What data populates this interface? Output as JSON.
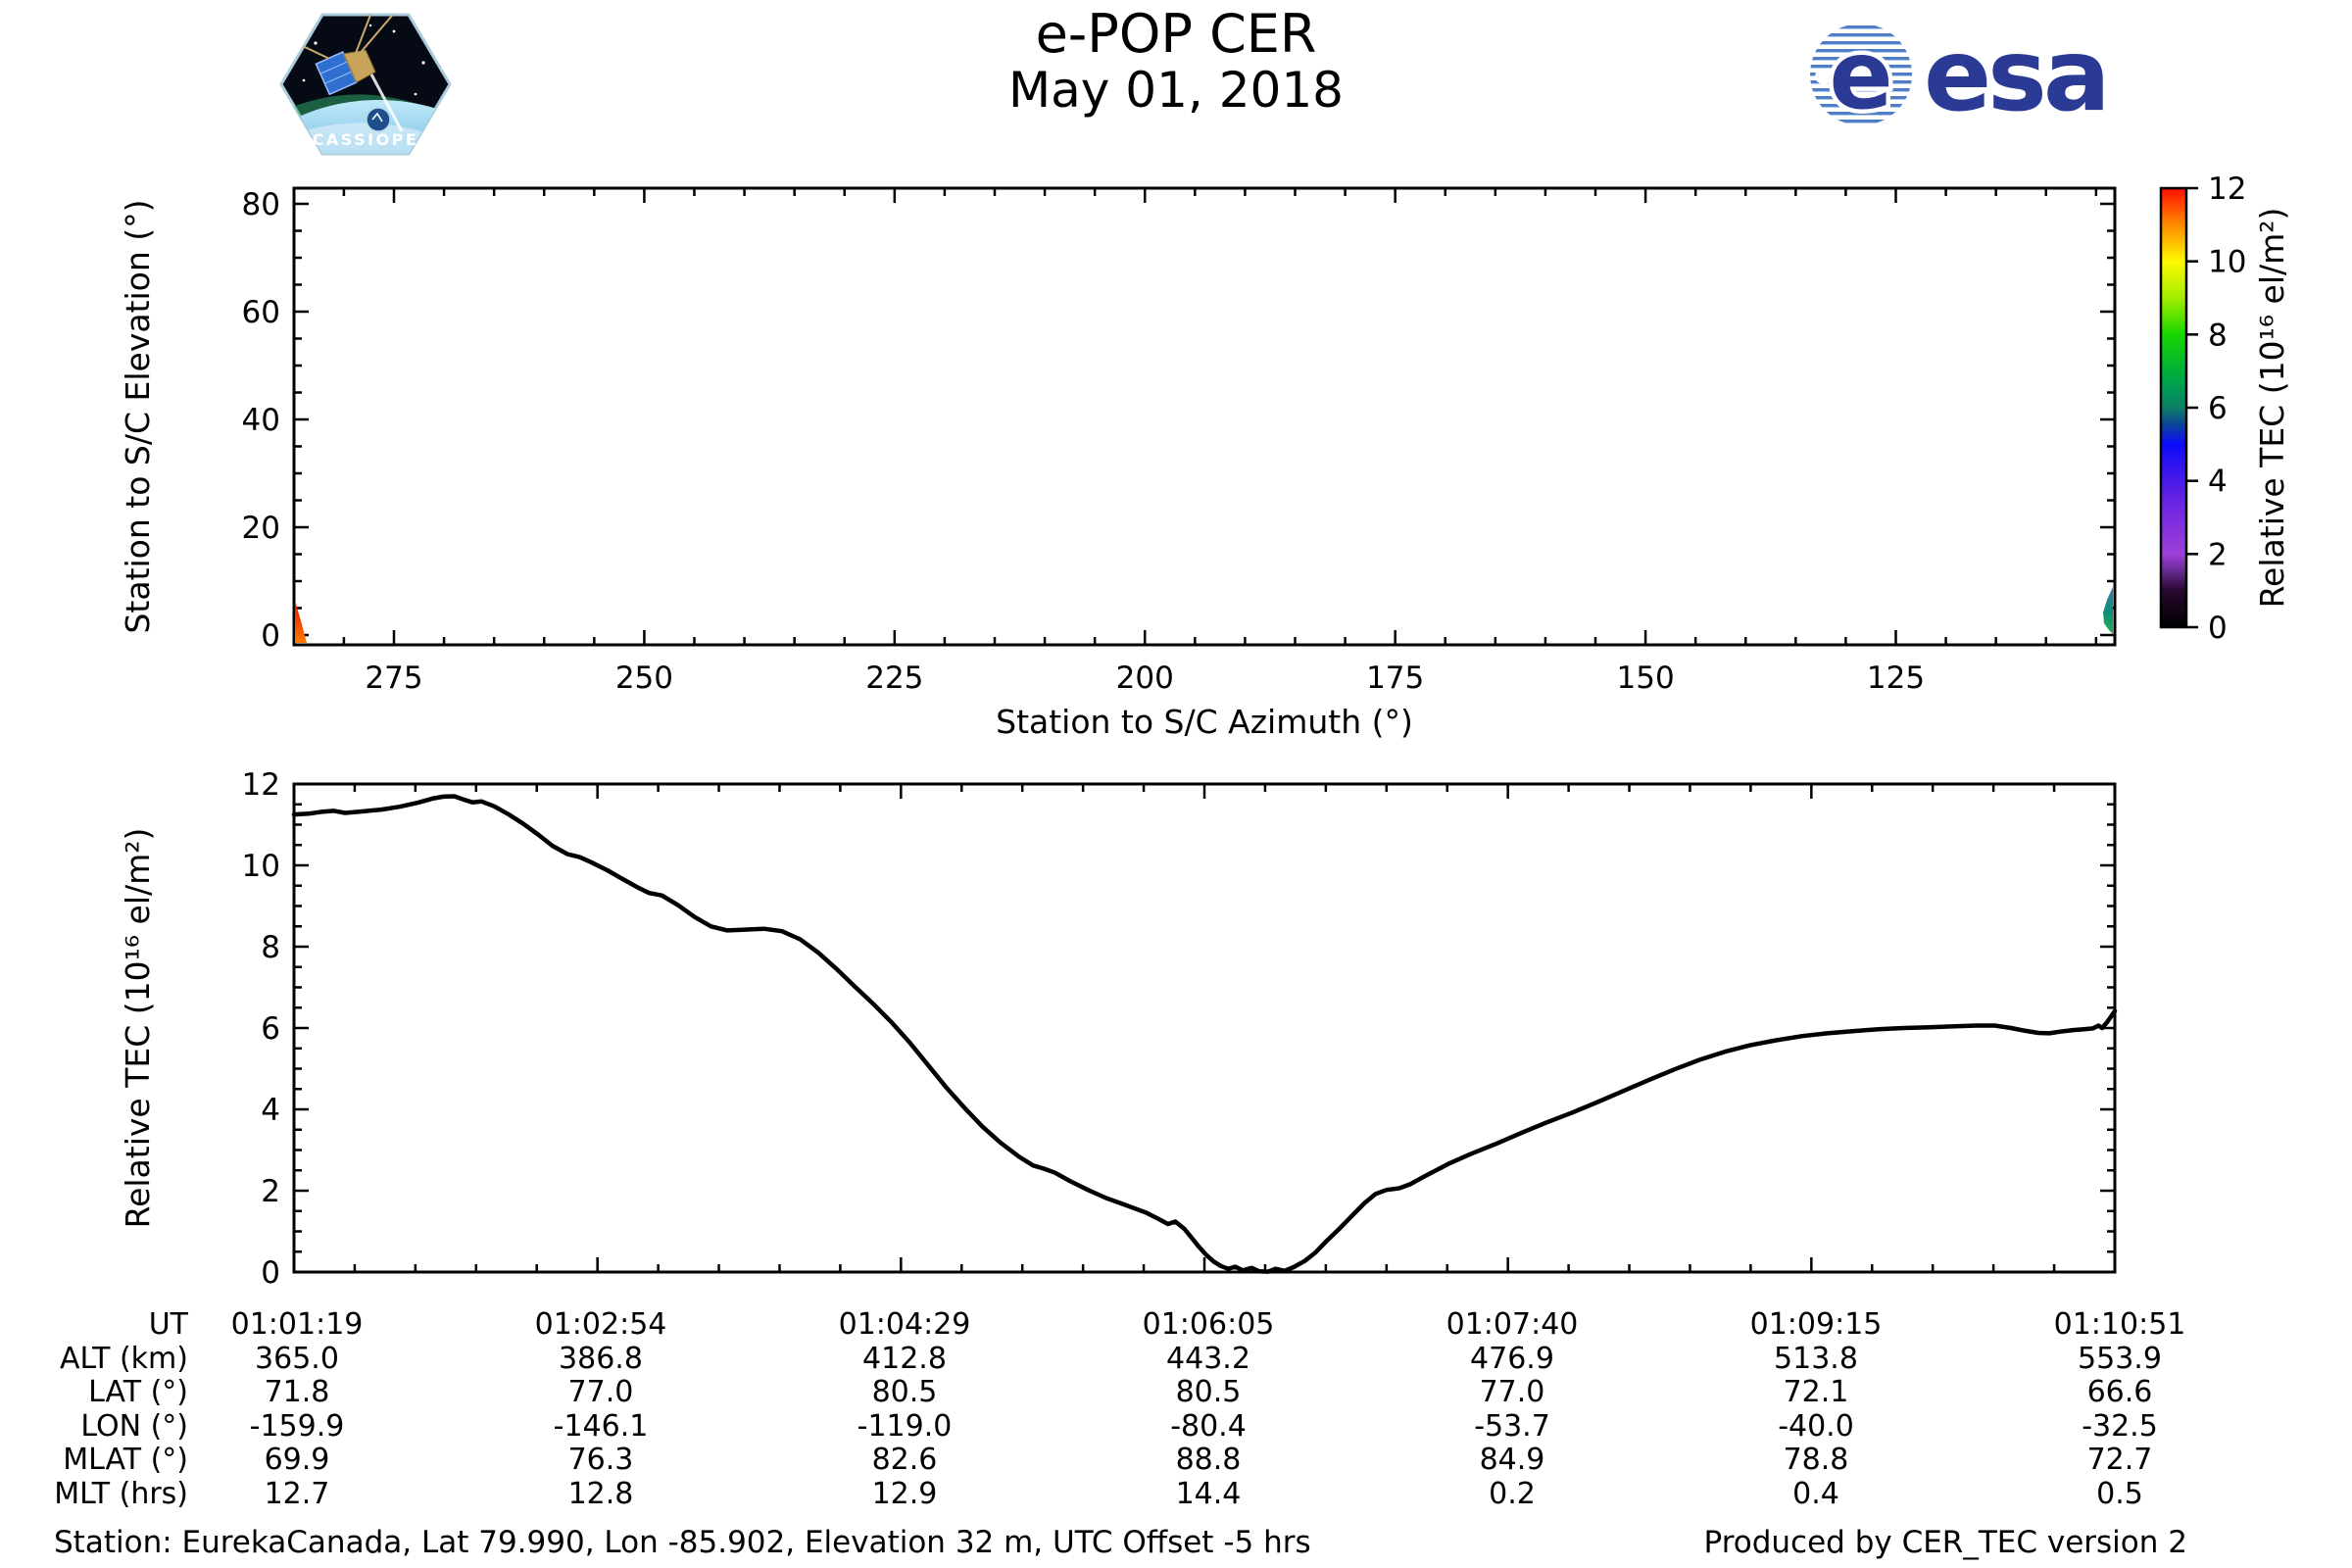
{
  "header": {
    "title_line1": "e-POP CER",
    "title_line2": "May 01, 2018",
    "cassiope_logo_text": "CASSIOPE",
    "esa_logo_text": "esa"
  },
  "footer": {
    "left": "Station: EurekaCanada, Lat 79.990, Lon -85.902, Elevation 32 m, UTC Offset -5 hrs",
    "right": "Produced by CER_TEC version 2"
  },
  "colors": {
    "esa_blue": "#2b3a94",
    "curve": "#000000",
    "axis": "#000000",
    "background": "#ffffff"
  },
  "chart_data": [
    {
      "id": "elevation-azimuth-plot",
      "type": "scatter",
      "title": "",
      "xlabel": "Station to S/C Azimuth (°)",
      "ylabel": "Station to S/C Elevation (°)",
      "xlim": [
        285,
        103
      ],
      "x_reversed": true,
      "ylim": [
        -2,
        83
      ],
      "xticks": [
        275,
        250,
        225,
        200,
        175,
        150,
        125
      ],
      "yticks": [
        0,
        20,
        40,
        60,
        80
      ],
      "minor_tick_step_x": 5,
      "minor_tick_step_y": 5,
      "grid": false,
      "series": [
        {
          "name": "pass-start-mark",
          "azimuth": 284.6,
          "elevation_min": 0,
          "elevation_max": 6.3,
          "tec_approx": 11.5,
          "color_top": "#e01000",
          "color_bottom": "#ff7d00"
        },
        {
          "name": "pass-end-mark",
          "azimuth": 103.4,
          "elevation_min": 1.8,
          "elevation_max": 8.8,
          "tec_approx": 6.2,
          "color_top": "#2e7fa6",
          "color_bottom": "#1cb152"
        }
      ]
    },
    {
      "id": "tec-colorbar",
      "type": "colorbar",
      "label": "Relative TEC (10¹⁶ el/m²)",
      "range": [
        0,
        12
      ],
      "ticks": [
        0,
        2,
        4,
        6,
        8,
        10,
        12
      ],
      "stops_top_to_bottom": [
        [
          12,
          "#ff0e00"
        ],
        [
          11,
          "#ff8a00"
        ],
        [
          10,
          "#fef800"
        ],
        [
          9,
          "#a2ee00"
        ],
        [
          8,
          "#18d600"
        ],
        [
          7,
          "#00b037"
        ],
        [
          6.5,
          "#009a55"
        ],
        [
          6,
          "#0d8066"
        ],
        [
          5.5,
          "#0b3f9f"
        ],
        [
          5,
          "#0c0cfa"
        ],
        [
          4,
          "#4a1ae8"
        ],
        [
          3,
          "#7c2ce0"
        ],
        [
          2,
          "#9c40d8"
        ],
        [
          1.5,
          "#64288c"
        ],
        [
          1,
          "#26082e"
        ],
        [
          0,
          "#000000"
        ]
      ]
    },
    {
      "id": "tec-time-series",
      "type": "line",
      "xlabel": "UT",
      "ylabel": "Relative TEC (10¹⁶ el/m²)",
      "ylim": [
        0,
        12
      ],
      "yticks": [
        0,
        2,
        4,
        6,
        8,
        10,
        12
      ],
      "minor_tick_step_y": 0.5,
      "x_tick_labels": [
        "01:01:19",
        "01:02:54",
        "01:04:29",
        "01:06:05",
        "01:07:40",
        "01:09:15",
        "01:10:51"
      ],
      "line_color": "#000000",
      "points": [
        [
          0.0,
          11.25
        ],
        [
          0.008,
          11.27
        ],
        [
          0.016,
          11.32
        ],
        [
          0.022,
          11.34
        ],
        [
          0.028,
          11.29
        ],
        [
          0.036,
          11.32
        ],
        [
          0.048,
          11.37
        ],
        [
          0.058,
          11.44
        ],
        [
          0.068,
          11.54
        ],
        [
          0.076,
          11.64
        ],
        [
          0.082,
          11.69
        ],
        [
          0.088,
          11.7
        ],
        [
          0.093,
          11.62
        ],
        [
          0.098,
          11.55
        ],
        [
          0.103,
          11.57
        ],
        [
          0.11,
          11.45
        ],
        [
          0.118,
          11.25
        ],
        [
          0.126,
          11.02
        ],
        [
          0.134,
          10.76
        ],
        [
          0.142,
          10.48
        ],
        [
          0.15,
          10.28
        ],
        [
          0.157,
          10.2
        ],
        [
          0.163,
          10.08
        ],
        [
          0.172,
          9.88
        ],
        [
          0.181,
          9.65
        ],
        [
          0.189,
          9.45
        ],
        [
          0.195,
          9.32
        ],
        [
          0.202,
          9.26
        ],
        [
          0.211,
          9.02
        ],
        [
          0.22,
          8.73
        ],
        [
          0.229,
          8.5
        ],
        [
          0.238,
          8.4
        ],
        [
          0.248,
          8.42
        ],
        [
          0.258,
          8.44
        ],
        [
          0.268,
          8.38
        ],
        [
          0.278,
          8.18
        ],
        [
          0.288,
          7.85
        ],
        [
          0.298,
          7.45
        ],
        [
          0.308,
          7.02
        ],
        [
          0.318,
          6.6
        ],
        [
          0.328,
          6.15
        ],
        [
          0.338,
          5.65
        ],
        [
          0.348,
          5.1
        ],
        [
          0.358,
          4.55
        ],
        [
          0.368,
          4.05
        ],
        [
          0.378,
          3.58
        ],
        [
          0.388,
          3.18
        ],
        [
          0.398,
          2.84
        ],
        [
          0.406,
          2.62
        ],
        [
          0.412,
          2.54
        ],
        [
          0.418,
          2.44
        ],
        [
          0.426,
          2.24
        ],
        [
          0.436,
          2.02
        ],
        [
          0.446,
          1.82
        ],
        [
          0.456,
          1.66
        ],
        [
          0.462,
          1.56
        ],
        [
          0.468,
          1.46
        ],
        [
          0.475,
          1.3
        ],
        [
          0.48,
          1.18
        ],
        [
          0.484,
          1.24
        ],
        [
          0.489,
          1.06
        ],
        [
          0.493,
          0.84
        ],
        [
          0.497,
          0.62
        ],
        [
          0.501,
          0.42
        ],
        [
          0.505,
          0.26
        ],
        [
          0.509,
          0.15
        ],
        [
          0.513,
          0.08
        ],
        [
          0.517,
          0.13
        ],
        [
          0.521,
          0.04
        ],
        [
          0.526,
          0.1
        ],
        [
          0.53,
          0.02
        ],
        [
          0.535,
          0.01
        ],
        [
          0.539,
          0.08
        ],
        [
          0.544,
          0.03
        ],
        [
          0.549,
          0.12
        ],
        [
          0.555,
          0.27
        ],
        [
          0.561,
          0.48
        ],
        [
          0.567,
          0.76
        ],
        [
          0.574,
          1.06
        ],
        [
          0.581,
          1.38
        ],
        [
          0.588,
          1.7
        ],
        [
          0.594,
          1.92
        ],
        [
          0.6,
          2.02
        ],
        [
          0.607,
          2.06
        ],
        [
          0.613,
          2.16
        ],
        [
          0.622,
          2.38
        ],
        [
          0.634,
          2.66
        ],
        [
          0.646,
          2.9
        ],
        [
          0.66,
          3.15
        ],
        [
          0.674,
          3.42
        ],
        [
          0.688,
          3.68
        ],
        [
          0.702,
          3.92
        ],
        [
          0.716,
          4.18
        ],
        [
          0.73,
          4.45
        ],
        [
          0.744,
          4.72
        ],
        [
          0.758,
          4.98
        ],
        [
          0.772,
          5.22
        ],
        [
          0.786,
          5.42
        ],
        [
          0.8,
          5.58
        ],
        [
          0.814,
          5.7
        ],
        [
          0.828,
          5.8
        ],
        [
          0.842,
          5.87
        ],
        [
          0.856,
          5.92
        ],
        [
          0.87,
          5.97
        ],
        [
          0.884,
          6.0
        ],
        [
          0.898,
          6.02
        ],
        [
          0.912,
          6.04
        ],
        [
          0.924,
          6.06
        ],
        [
          0.934,
          6.06
        ],
        [
          0.943,
          6.0
        ],
        [
          0.951,
          5.93
        ],
        [
          0.958,
          5.88
        ],
        [
          0.964,
          5.87
        ],
        [
          0.97,
          5.91
        ],
        [
          0.977,
          5.95
        ],
        [
          0.983,
          5.97
        ],
        [
          0.988,
          5.99
        ],
        [
          0.991,
          6.06
        ],
        [
          0.993,
          6.0
        ],
        [
          0.996,
          6.16
        ],
        [
          1.0,
          6.42
        ]
      ]
    }
  ],
  "table": {
    "rows": [
      {
        "label": "UT",
        "values": [
          "01:01:19",
          "01:02:54",
          "01:04:29",
          "01:06:05",
          "01:07:40",
          "01:09:15",
          "01:10:51"
        ]
      },
      {
        "label": "ALT (km)",
        "values": [
          "365.0",
          "386.8",
          "412.8",
          "443.2",
          "476.9",
          "513.8",
          "553.9"
        ]
      },
      {
        "label": "LAT (°)",
        "values": [
          "71.8",
          "77.0",
          "80.5",
          "80.5",
          "77.0",
          "72.1",
          "66.6"
        ]
      },
      {
        "label": "LON (°)",
        "values": [
          "-159.9",
          "-146.1",
          "-119.0",
          "-80.4",
          "-53.7",
          "-40.0",
          "-32.5"
        ]
      },
      {
        "label": "MLAT (°)",
        "values": [
          "69.9",
          "76.3",
          "82.6",
          "88.8",
          "84.9",
          "78.8",
          "72.7"
        ]
      },
      {
        "label": "MLT (hrs)",
        "values": [
          "12.7",
          "12.8",
          "12.9",
          "14.4",
          "0.2",
          "0.4",
          "0.5"
        ]
      }
    ]
  }
}
